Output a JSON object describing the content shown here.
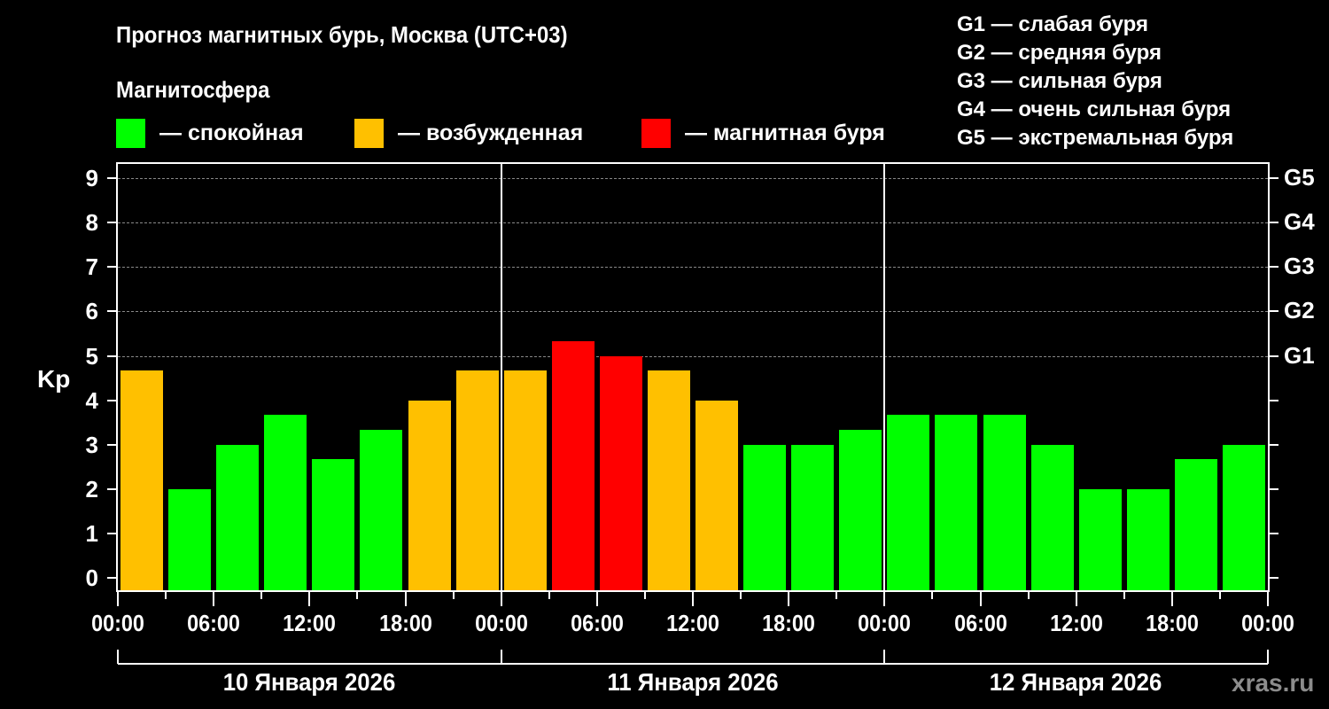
{
  "header": {
    "title": "Прогноз магнитных бурь, Москва (UTC+03)",
    "subtitle": "Магнитосфера"
  },
  "legend": {
    "items": [
      {
        "label": "— спокойная",
        "color": "#00ff00"
      },
      {
        "label": "— возбужденная",
        "color": "#ffc000"
      },
      {
        "label": "— магнитная буря",
        "color": "#ff0000"
      }
    ]
  },
  "storm_levels": [
    "G1 — слабая буря",
    "G2 — средняя буря",
    "G3 — сильная буря",
    "G4 — очень сильная буря",
    "G5 — экстремальная буря"
  ],
  "axes": {
    "y_label": "Kp",
    "y_ticks": [
      "0",
      "1",
      "2",
      "3",
      "4",
      "5",
      "6",
      "7",
      "8",
      "9"
    ],
    "right_ticks": [
      "G1",
      "G2",
      "G3",
      "G4",
      "G5"
    ],
    "x_ticks": [
      "00:00",
      "06:00",
      "12:00",
      "18:00",
      "00:00",
      "06:00",
      "12:00",
      "18:00",
      "00:00",
      "06:00",
      "12:00",
      "18:00",
      "00:00"
    ],
    "days": [
      "10 Января 2026",
      "11 Января 2026",
      "12 Января 2026"
    ]
  },
  "watermark": "xras.ru",
  "chart_data": {
    "type": "bar",
    "title": "Прогноз магнитных бурь, Москва (UTC+03)",
    "xlabel": "",
    "ylabel": "Kp",
    "ylim": [
      0,
      9
    ],
    "grid": "horizontal dashed at Kp 5-9",
    "legend_position": "top",
    "categories": [
      "10.01 00-03",
      "10.01 03-06",
      "10.01 06-09",
      "10.01 09-12",
      "10.01 12-15",
      "10.01 15-18",
      "10.01 18-21",
      "10.01 21-24",
      "11.01 00-03",
      "11.01 03-06",
      "11.01 06-09",
      "11.01 09-12",
      "11.01 12-15",
      "11.01 15-18",
      "11.01 18-21",
      "11.01 21-24",
      "12.01 00-03",
      "12.01 03-06",
      "12.01 06-09",
      "12.01 09-12",
      "12.01 12-15",
      "12.01 15-18",
      "12.01 18-21",
      "12.01 21-24"
    ],
    "values": [
      4.67,
      2.0,
      3.0,
      3.67,
      2.67,
      3.33,
      4.0,
      4.67,
      4.67,
      5.33,
      5.0,
      4.67,
      4.0,
      3.0,
      3.0,
      3.33,
      3.67,
      3.67,
      3.67,
      3.0,
      2.0,
      2.0,
      2.67,
      3.0
    ],
    "colors": [
      "#ffc000",
      "#00ff00",
      "#00ff00",
      "#00ff00",
      "#00ff00",
      "#00ff00",
      "#ffc000",
      "#ffc000",
      "#ffc000",
      "#ff0000",
      "#ff0000",
      "#ffc000",
      "#ffc000",
      "#00ff00",
      "#00ff00",
      "#00ff00",
      "#00ff00",
      "#00ff00",
      "#00ff00",
      "#00ff00",
      "#00ff00",
      "#00ff00",
      "#00ff00",
      "#00ff00"
    ],
    "right_axis": {
      "G1": 5,
      "G2": 6,
      "G3": 7,
      "G4": 8,
      "G5": 9
    }
  }
}
